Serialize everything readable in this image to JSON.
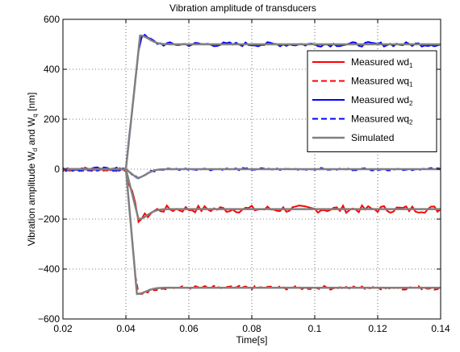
{
  "chart_data": {
    "type": "line",
    "title": "Vibration amplitude of transducers",
    "xlabel": "Time[s]",
    "ylabel": {
      "base": "Vibration amplitude W",
      "sub1": "d",
      "mid": " and W",
      "sub2": "q",
      "tail": " [nm]"
    },
    "xlim": [
      0.02,
      0.14
    ],
    "ylim": [
      -600,
      600
    ],
    "xticks": [
      0.02,
      0.04,
      0.06,
      0.08,
      0.1,
      0.12,
      0.14
    ],
    "xtick_labels": [
      "0.02",
      "0.04",
      "0.06",
      "0.08",
      "0.1",
      "0.12",
      "0.14"
    ],
    "yticks": [
      -600,
      -400,
      -200,
      0,
      200,
      400,
      600
    ],
    "ytick_labels": [
      "−600",
      "−400",
      "−200",
      "0",
      "200",
      "400",
      "600"
    ],
    "grid": true,
    "legend_position": "top-right",
    "series": [
      {
        "name_base": "Measured wd",
        "name_sub": "1",
        "color": "#ff0000",
        "dash": "solid",
        "steady": -160,
        "peak": -200,
        "t_peak": 0.044,
        "noise": 15
      },
      {
        "name_base": "Measured wq",
        "name_sub": "1",
        "color": "#ff0000",
        "dash": "dashed",
        "steady": -475,
        "peak": -500,
        "t_peak": 0.0435,
        "noise": 8
      },
      {
        "name_base": "Measured wd",
        "name_sub": "2",
        "color": "#0000ff",
        "dash": "solid",
        "steady": 500,
        "peak": 535,
        "t_peak": 0.0445,
        "noise": 9
      },
      {
        "name_base": "Measured wq",
        "name_sub": "2",
        "color": "#0000ff",
        "dash": "dashed",
        "steady": 0,
        "peak": -35,
        "t_peak": 0.0435,
        "noise": 5
      },
      {
        "name_base": "Simulated",
        "name_sub": "",
        "color": "#808080",
        "dash": "solid",
        "simulated": true
      }
    ],
    "step_time": 0.04
  }
}
